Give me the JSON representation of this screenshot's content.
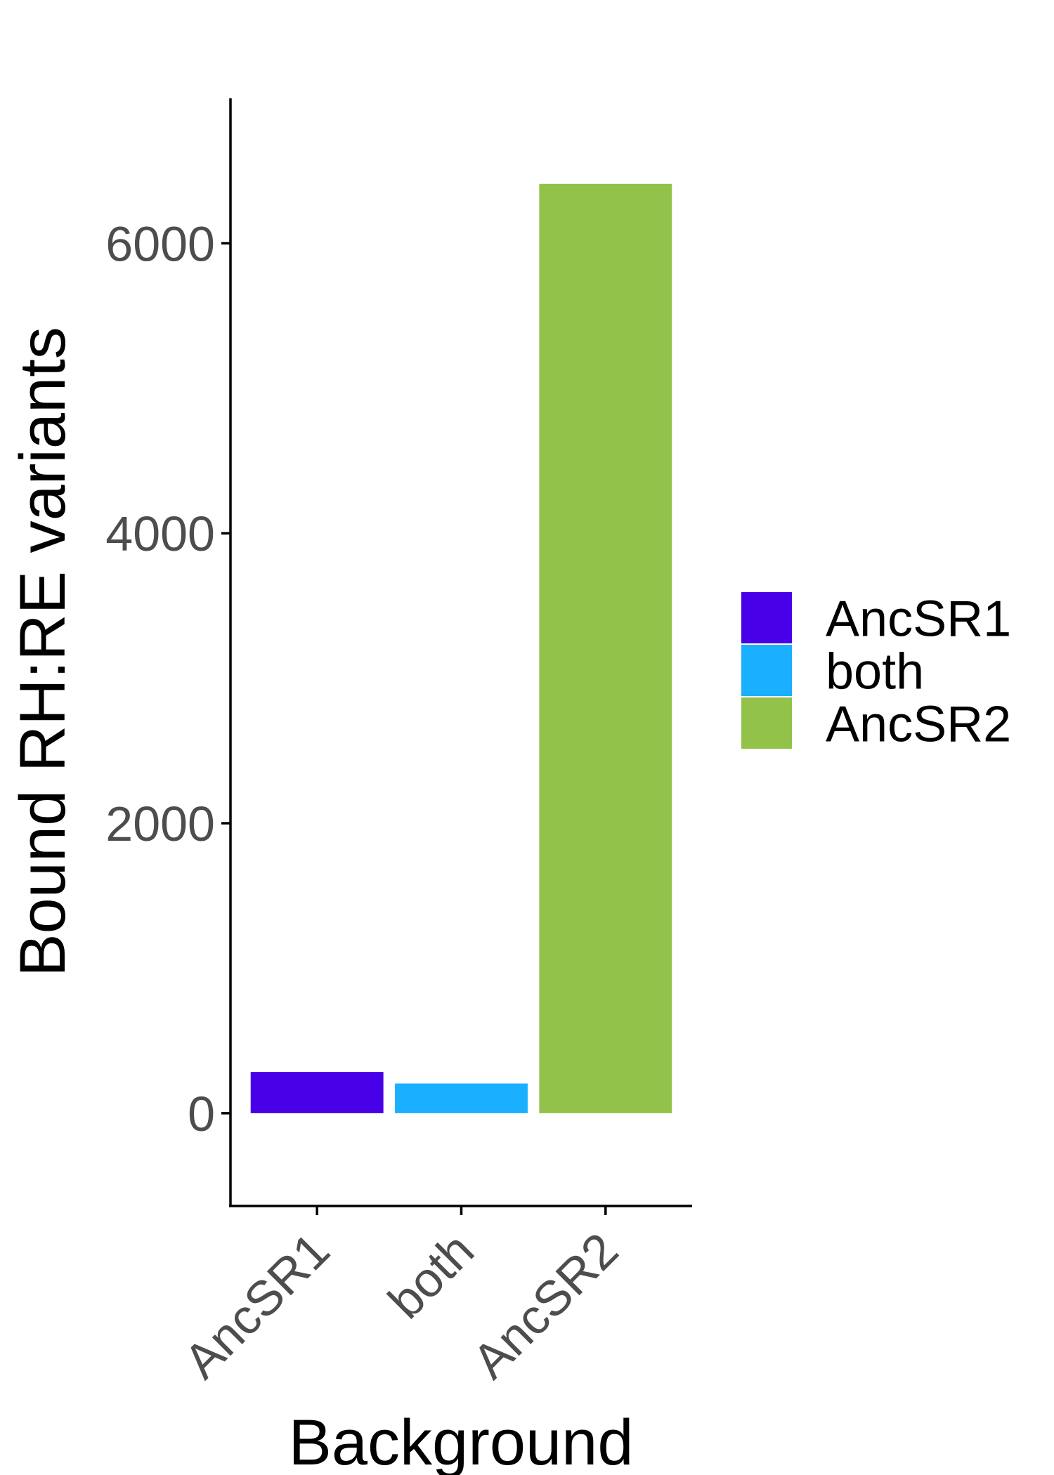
{
  "chart_data": {
    "type": "bar",
    "categories": [
      "AncSR1",
      "both",
      "AncSR2"
    ],
    "values": [
      285,
      205,
      6410
    ],
    "colors": [
      "#4800e8",
      "#1ab0ff",
      "#92c24a"
    ],
    "xlabel": "Background",
    "ylabel": "Bound RH:RE variants",
    "yticks": [
      0,
      2000,
      4000,
      6000
    ],
    "ylim": [
      -640,
      7000
    ],
    "grid": false,
    "legend": {
      "position": "right",
      "entries": [
        "AncSR1",
        "both",
        "AncSR2"
      ]
    }
  }
}
